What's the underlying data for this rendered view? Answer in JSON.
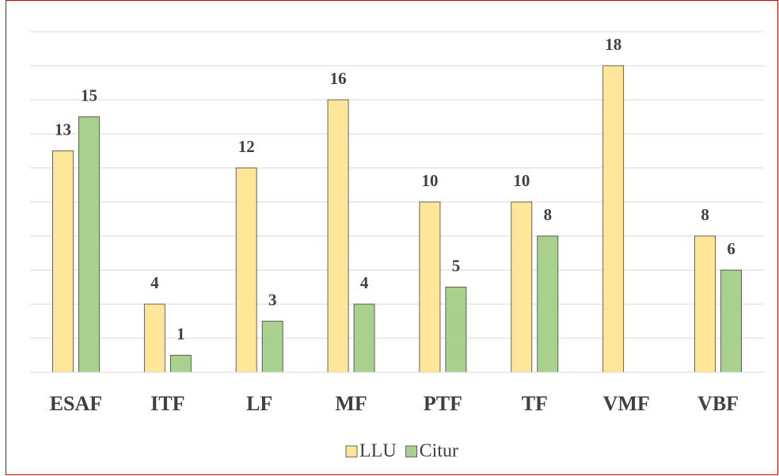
{
  "chart_data": {
    "type": "bar",
    "categories": [
      "ESAF",
      "ITF",
      "LF",
      "MF",
      "PTF",
      "TF",
      "VMF",
      "VBF"
    ],
    "series": [
      {
        "name": "LLU",
        "color": "#ffe699",
        "values": [
          13,
          4,
          12,
          16,
          10,
          10,
          18,
          8
        ]
      },
      {
        "name": "Citur",
        "color": "#a9d18e",
        "values": [
          15,
          1,
          3,
          4,
          5,
          8,
          null,
          6
        ]
      }
    ],
    "ylim": [
      0,
      20
    ],
    "yticks": [
      0,
      2,
      4,
      6,
      8,
      10,
      12,
      14,
      16,
      18,
      20
    ],
    "grid": true,
    "legend": "bottom"
  }
}
